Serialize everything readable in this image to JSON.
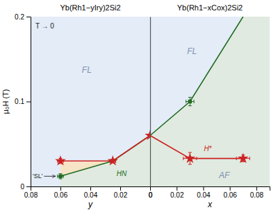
{
  "chart_data": [
    {
      "type": "line",
      "title": "Yb(Rh1−yIry)2Si2",
      "xlabel": "y",
      "ylabel": "μ₀H (T)",
      "xlim": [
        0.08,
        0.0
      ],
      "xticks": [
        0.08,
        0.06,
        0.04,
        0.02,
        0
      ],
      "ylim": [
        0.0,
        0.2
      ],
      "yticks": [
        0,
        0.1,
        0.2
      ],
      "series": [
        {
          "type": "line",
          "color": "#236b23",
          "x": [
            0.06,
            0.025,
            0.0
          ],
          "values": [
            0.012,
            0.03,
            0.06
          ]
        },
        {
          "type": "scatter",
          "marker": "square",
          "color": "#236b23",
          "x": [
            0.06,
            0.025,
            0.0
          ],
          "values": [
            0.012,
            0.03,
            0.06
          ],
          "xerr": [
            0.002,
            0.002,
            0.0
          ],
          "yerr": [
            0.003,
            0.002,
            0.0
          ]
        },
        {
          "type": "line",
          "color": "#cc2222",
          "x": [
            0.06,
            0.025,
            0.0
          ],
          "values": [
            0.03,
            0.03,
            0.06
          ]
        },
        {
          "type": "scatter",
          "marker": "star",
          "color": "#cc2222",
          "x": [
            0.06,
            0.025,
            0.0
          ],
          "values": [
            0.03,
            0.03,
            0.06
          ],
          "xerr": [
            0.002,
            0.002,
            0.0
          ],
          "yerr": [
            0.003,
            0.002,
            0.0
          ]
        }
      ],
      "annotations": [
        "T → 0",
        "FL",
        "'SL'",
        "HN"
      ]
    },
    {
      "type": "line",
      "title": "Yb(Rh1−xCox)2Si2",
      "xlabel": "x",
      "xlim": [
        0.0,
        0.09
      ],
      "xticks": [
        0,
        0.02,
        0.04,
        0.06,
        0.08
      ],
      "ylim": [
        0.0,
        0.2
      ],
      "tick_labels": "x",
      "series": [
        {
          "type": "line",
          "color": "#236b23",
          "x": [
            0.0,
            0.03,
            0.07
          ],
          "values": [
            0.06,
            0.1,
            0.2
          ]
        },
        {
          "type": "scatter",
          "marker": "square",
          "color": "#236b23",
          "x": [
            0.03
          ],
          "values": [
            0.1
          ],
          "xerr": [
            0.003
          ],
          "yerr": [
            0.005
          ]
        },
        {
          "type": "line",
          "color": "#cc2222",
          "x": [
            0.0,
            0.03,
            0.07
          ],
          "values": [
            0.06,
            0.033,
            0.033
          ]
        },
        {
          "type": "scatter",
          "marker": "star",
          "color": "#cc2222",
          "x": [
            0.03,
            0.07
          ],
          "values": [
            0.033,
            0.033
          ],
          "xerr": [
            0.005,
            0.005
          ],
          "yerr": [
            0.007,
            0.004
          ]
        }
      ],
      "annotations": [
        "FL",
        "AF",
        "H*"
      ]
    }
  ]
}
